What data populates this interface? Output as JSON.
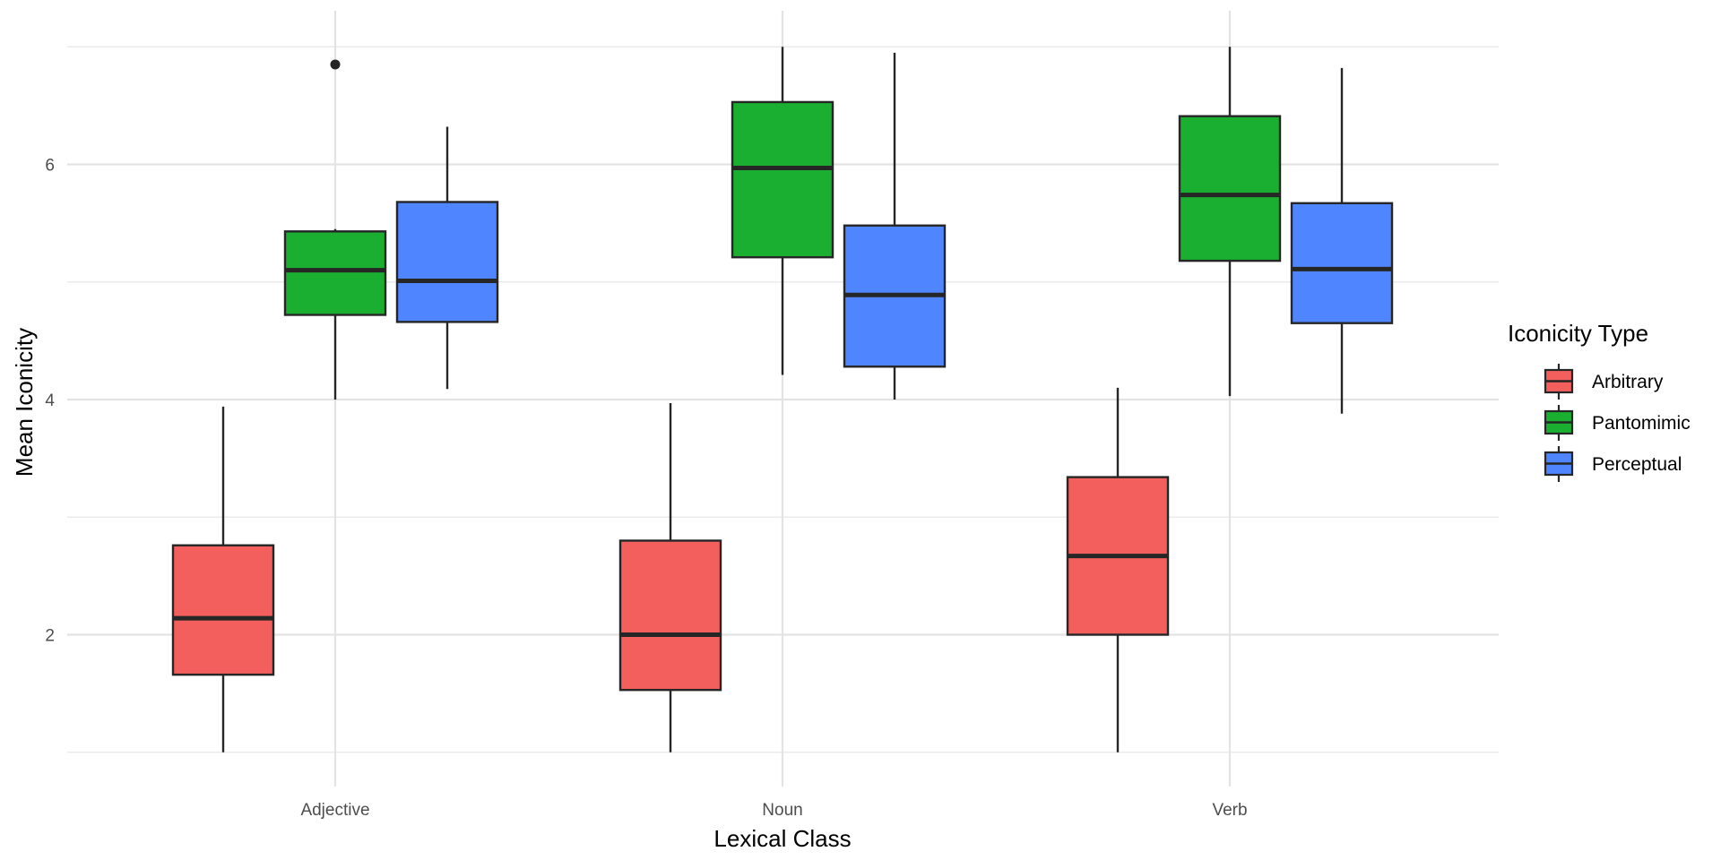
{
  "chart_data": {
    "type": "box",
    "title": "",
    "xlabel": "Lexical Class",
    "ylabel": "Mean Iconicity",
    "categories": [
      "Adjective",
      "Noun",
      "Verb"
    ],
    "ylim": [
      0.8,
      7.2
    ],
    "yticks": [
      2,
      4,
      6
    ],
    "grid": true,
    "legend": {
      "title": "Iconicity Type",
      "position": "right"
    },
    "series": [
      {
        "name": "Arbitrary",
        "color": "#F25F5C",
        "boxes": [
          {
            "category": "Adjective",
            "min": 1.0,
            "q1": 1.66,
            "median": 2.14,
            "q3": 2.76,
            "max": 3.94,
            "outliers": []
          },
          {
            "category": "Noun",
            "min": 1.0,
            "q1": 1.53,
            "median": 2.0,
            "q3": 2.8,
            "max": 3.97,
            "outliers": []
          },
          {
            "category": "Verb",
            "min": 1.0,
            "q1": 2.0,
            "median": 2.67,
            "q3": 3.34,
            "max": 4.1,
            "outliers": []
          }
        ]
      },
      {
        "name": "Pantomimic",
        "color": "#1AAF31",
        "boxes": [
          {
            "category": "Adjective",
            "min": 4.0,
            "q1": 4.72,
            "median": 5.1,
            "q3": 5.43,
            "max": 5.45,
            "outliers": [
              6.85
            ]
          },
          {
            "category": "Noun",
            "min": 4.21,
            "q1": 5.21,
            "median": 5.97,
            "q3": 6.53,
            "max": 7.0,
            "outliers": []
          },
          {
            "category": "Verb",
            "min": 4.03,
            "q1": 5.18,
            "median": 5.74,
            "q3": 6.41,
            "max": 7.0,
            "outliers": []
          }
        ]
      },
      {
        "name": "Perceptual",
        "color": "#4F86FF",
        "boxes": [
          {
            "category": "Adjective",
            "min": 4.09,
            "q1": 4.66,
            "median": 5.01,
            "q3": 5.68,
            "max": 6.32,
            "outliers": []
          },
          {
            "category": "Noun",
            "min": 4.0,
            "q1": 4.28,
            "median": 4.89,
            "q3": 5.48,
            "max": 6.95,
            "outliers": []
          },
          {
            "category": "Verb",
            "min": 3.88,
            "q1": 4.65,
            "median": 5.11,
            "q3": 5.67,
            "max": 6.82,
            "outliers": []
          }
        ]
      }
    ]
  }
}
